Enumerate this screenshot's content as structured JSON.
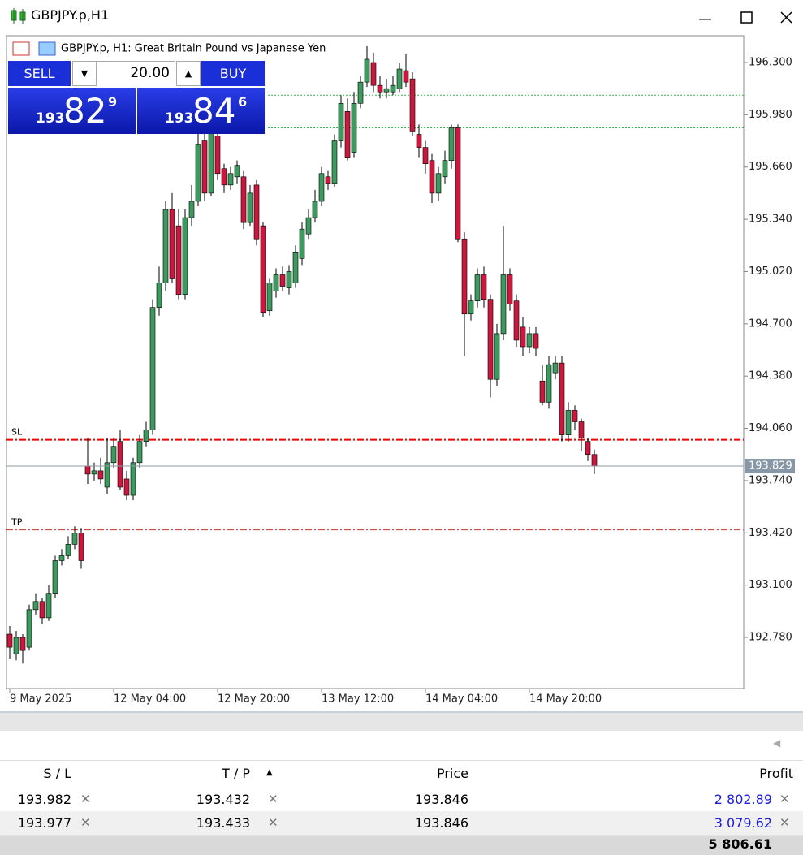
{
  "window": {
    "title": "GBPJPY.p,H1"
  },
  "trade_panel": {
    "sell": "SELL",
    "buy": "BUY",
    "volume": "20.00",
    "sell_price": {
      "big": "193",
      "main": "82",
      "small": "9"
    },
    "buy_price": {
      "big": "193",
      "main": "84",
      "small": "6"
    }
  },
  "chart_data": {
    "type": "candlestick",
    "title": "GBPJPY.p, H1:  Great Britain Pound vs Japanese Yen",
    "open": [
      192.8,
      192.68,
      192.78,
      192.72,
      192.95,
      193.0,
      192.9,
      193.05,
      193.25,
      193.28,
      193.35,
      193.42,
      193.83,
      193.78,
      193.8,
      193.7,
      193.85,
      193.98,
      193.75,
      193.65,
      193.85,
      193.98,
      194.05,
      194.8,
      194.95,
      195.4,
      195.3,
      194.88,
      195.35,
      195.45,
      195.82,
      195.5,
      195.85,
      195.65,
      195.55,
      195.6,
      195.6,
      195.32,
      195.55,
      195.3,
      194.78,
      194.9,
      195.0,
      194.92,
      194.95,
      195.1,
      195.25,
      195.35,
      195.45,
      195.6,
      195.56,
      195.82,
      196.0,
      195.75,
      196.05,
      196.18,
      196.3,
      196.16,
      196.12,
      196.12,
      196.14,
      196.25,
      196.2,
      195.86,
      195.78,
      195.7,
      195.5,
      195.6,
      195.7,
      195.9,
      195.22,
      194.76,
      194.84,
      195.0,
      194.85,
      194.36,
      194.64,
      195.0,
      194.84,
      194.68,
      194.56,
      194.64,
      194.35,
      194.22,
      194.4,
      194.46,
      194.02,
      194.17,
      194.1,
      193.98,
      193.9
    ],
    "high": [
      192.85,
      192.82,
      192.8,
      192.98,
      193.05,
      193.02,
      193.1,
      193.28,
      193.32,
      193.4,
      193.46,
      193.45,
      194.0,
      193.85,
      193.88,
      194.0,
      194.0,
      194.05,
      193.8,
      193.88,
      194.02,
      194.1,
      194.85,
      195.05,
      195.45,
      195.5,
      195.4,
      195.4,
      195.55,
      195.9,
      195.88,
      195.92,
      195.9,
      195.68,
      195.66,
      195.7,
      195.64,
      195.55,
      195.58,
      195.32,
      194.98,
      195.04,
      195.05,
      195.06,
      195.18,
      195.32,
      195.4,
      195.52,
      195.66,
      195.64,
      195.86,
      196.1,
      196.08,
      196.12,
      196.22,
      196.4,
      196.36,
      196.22,
      196.2,
      196.22,
      196.3,
      196.35,
      196.24,
      195.92,
      195.82,
      195.74,
      195.66,
      195.76,
      195.92,
      195.92,
      195.26,
      194.88,
      195.04,
      195.05,
      194.88,
      194.7,
      195.3,
      195.04,
      194.88,
      194.74,
      194.68,
      194.68,
      194.45,
      194.5,
      194.5,
      194.5,
      194.22,
      194.2,
      194.12,
      194.0,
      193.93
    ],
    "low": [
      192.65,
      192.64,
      192.62,
      192.7,
      192.92,
      192.86,
      192.88,
      193.02,
      193.22,
      193.26,
      193.32,
      193.2,
      193.72,
      193.74,
      193.72,
      193.66,
      193.82,
      193.68,
      193.62,
      193.62,
      193.82,
      193.95,
      194.02,
      194.75,
      194.9,
      194.95,
      194.85,
      194.85,
      195.3,
      195.42,
      195.45,
      195.48,
      195.58,
      195.5,
      195.52,
      195.56,
      195.28,
      195.3,
      195.18,
      194.74,
      194.75,
      194.86,
      194.9,
      194.88,
      194.92,
      195.06,
      195.22,
      195.32,
      195.42,
      195.52,
      195.54,
      195.78,
      195.7,
      195.72,
      196.02,
      196.15,
      196.12,
      196.08,
      196.08,
      196.1,
      196.12,
      196.15,
      195.85,
      195.72,
      195.62,
      195.44,
      195.45,
      195.56,
      195.65,
      195.2,
      194.5,
      194.72,
      194.8,
      194.8,
      194.25,
      194.32,
      194.6,
      194.78,
      194.56,
      194.5,
      194.52,
      194.5,
      194.2,
      194.18,
      194.36,
      193.98,
      193.98,
      194.05,
      193.92,
      193.86,
      193.78
    ],
    "close": [
      192.72,
      192.78,
      192.7,
      192.95,
      193.0,
      192.9,
      193.05,
      193.25,
      193.28,
      193.35,
      193.42,
      193.25,
      193.78,
      193.8,
      193.75,
      193.85,
      193.95,
      193.7,
      193.65,
      193.85,
      193.98,
      194.05,
      194.8,
      194.95,
      195.4,
      194.98,
      194.88,
      195.35,
      195.45,
      195.8,
      195.5,
      195.9,
      195.62,
      195.55,
      195.62,
      195.67,
      195.32,
      195.5,
      195.22,
      194.77,
      194.95,
      195.0,
      194.93,
      195.02,
      195.14,
      195.28,
      195.35,
      195.45,
      195.62,
      195.56,
      195.82,
      196.05,
      195.72,
      196.05,
      196.18,
      196.32,
      196.16,
      196.12,
      196.14,
      196.16,
      196.26,
      196.18,
      195.88,
      195.78,
      195.68,
      195.5,
      195.62,
      195.7,
      195.9,
      195.22,
      194.76,
      194.84,
      195.0,
      194.85,
      194.36,
      194.64,
      195.0,
      194.82,
      194.6,
      194.56,
      194.64,
      194.55,
      194.22,
      194.45,
      194.46,
      194.02,
      194.17,
      194.1,
      194.0,
      193.9,
      193.83
    ],
    "up_color": "#3d9a5e",
    "down_color": "#d0163c",
    "xlim": [
      -0.5,
      113
    ],
    "xticks": [
      {
        "value": 0,
        "label": "9 May 2025"
      },
      {
        "value": 16,
        "label": "12 May 04:00"
      },
      {
        "value": 32,
        "label": "12 May 20:00"
      },
      {
        "value": 48,
        "label": "13 May 12:00"
      },
      {
        "value": 64,
        "label": "14 May 04:00"
      },
      {
        "value": 80,
        "label": "14 May 20:00"
      }
    ],
    "ylim": [
      192.467,
      196.464
    ],
    "yticks": [
      {
        "value": 196.3,
        "label": "196.300"
      },
      {
        "value": 195.98,
        "label": "195.980"
      },
      {
        "value": 195.66,
        "label": "195.660"
      },
      {
        "value": 195.34,
        "label": "195.340"
      },
      {
        "value": 195.02,
        "label": "195.020"
      },
      {
        "value": 194.7,
        "label": "194.700"
      },
      {
        "value": 194.38,
        "label": "194.380"
      },
      {
        "value": 194.06,
        "label": "194.060"
      },
      {
        "value": 193.74,
        "label": "193.740"
      },
      {
        "value": 193.42,
        "label": "193.420"
      },
      {
        "value": 193.1,
        "label": "193.100"
      },
      {
        "value": 192.78,
        "label": "192.780"
      }
    ],
    "last_price": 193.829,
    "levels": [
      196.1,
      195.9
    ],
    "sl": {
      "label": "SL",
      "value": 193.99
    },
    "tp": {
      "label": "TP",
      "value": 193.438
    }
  },
  "table": {
    "headers": [
      "S / L",
      "T / P",
      "Price",
      "Profit"
    ],
    "rows": [
      [
        "193.982",
        "193.432",
        "193.846",
        "2 802.89"
      ],
      [
        "193.977",
        "193.433",
        "193.846",
        "3 079.62"
      ]
    ],
    "total": "5 806.61"
  }
}
